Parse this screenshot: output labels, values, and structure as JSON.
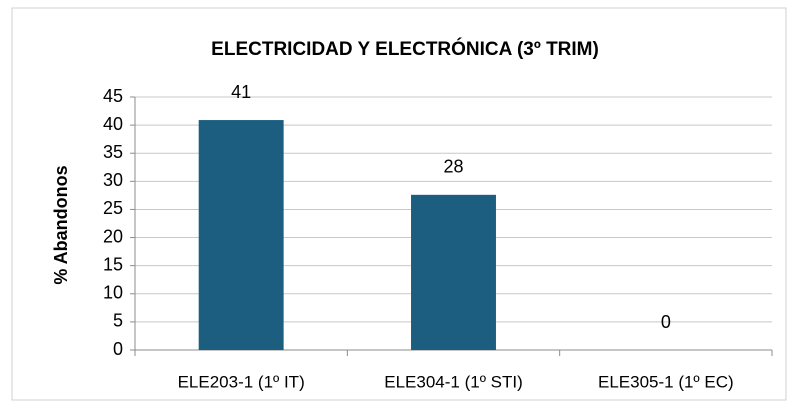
{
  "chart_data": {
    "type": "bar",
    "title": "ELECTRICIDAD Y ELECTRÓNICA (3º TRIM)",
    "y_label": "% Abandonos",
    "categories": [
      "ELE203-1 (1º IT)",
      "ELE304-1 (1º STI)",
      "ELE305-1 (1º EC)"
    ],
    "values": [
      40.9,
      27.6,
      0
    ],
    "value_labels": [
      "41",
      "28",
      "0"
    ],
    "color": "#1b5e80",
    "ylim": [
      0,
      45
    ],
    "yticks": [
      0,
      5,
      10,
      15,
      20,
      25,
      30,
      35,
      40,
      45
    ],
    "grid": true
  }
}
